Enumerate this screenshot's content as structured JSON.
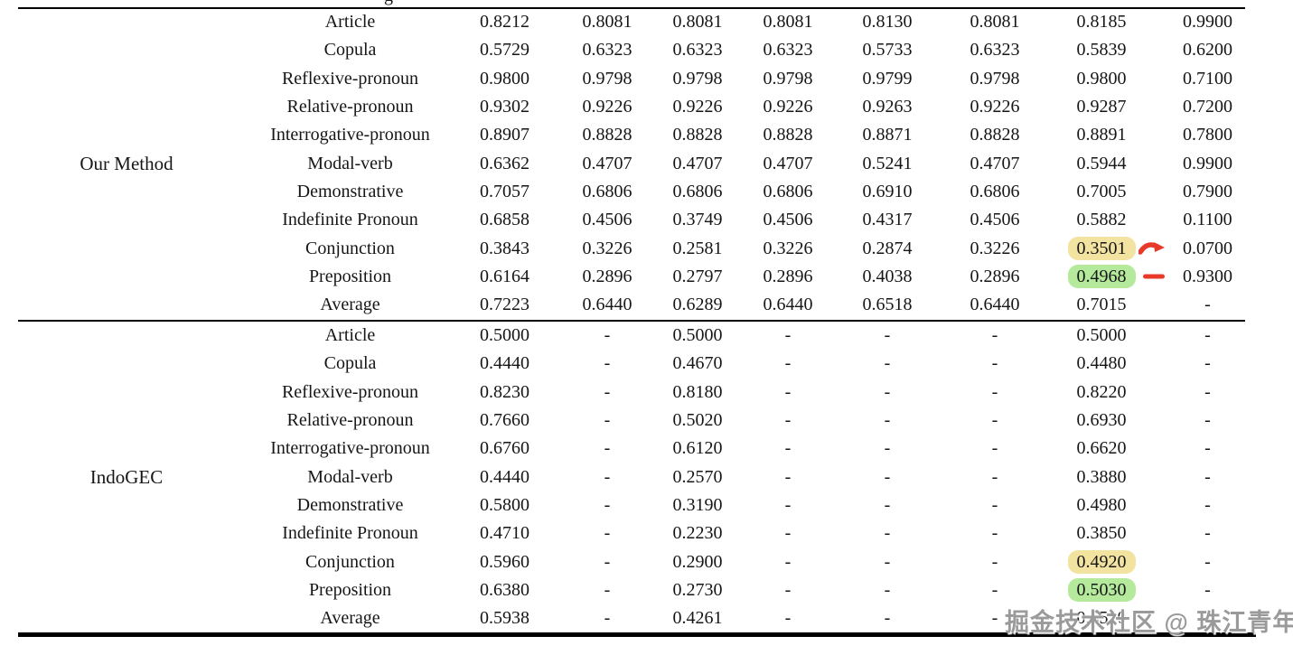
{
  "page": {
    "watermark": "掘金技术社区 @ 珠江青年",
    "cropped_header_remnant": "g"
  },
  "colors": {
    "highlight_yellow": "#f3e3a1",
    "highlight_green": "#b5ea9c",
    "annotation_red": "#e8392b",
    "text": "#161616",
    "watermark_gray": "#9a9a9a"
  },
  "table": {
    "sections": [
      {
        "group": "Our Method",
        "rows": [
          {
            "category": "Article",
            "values": [
              "0.8212",
              "0.8081",
              "0.8081",
              "0.8081",
              "0.8130",
              "0.8081",
              "0.8185",
              "0.9900"
            ]
          },
          {
            "category": "Copula",
            "values": [
              "0.5729",
              "0.6323",
              "0.6323",
              "0.6323",
              "0.5733",
              "0.6323",
              "0.5839",
              "0.6200"
            ]
          },
          {
            "category": "Reflexive-pronoun",
            "values": [
              "0.9800",
              "0.9798",
              "0.9798",
              "0.9798",
              "0.9799",
              "0.9798",
              "0.9800",
              "0.7100"
            ]
          },
          {
            "category": "Relative-pronoun",
            "values": [
              "0.9302",
              "0.9226",
              "0.9226",
              "0.9226",
              "0.9263",
              "0.9226",
              "0.9287",
              "0.7200"
            ]
          },
          {
            "category": "Interrogative-pronoun",
            "values": [
              "0.8907",
              "0.8828",
              "0.8828",
              "0.8828",
              "0.8871",
              "0.8828",
              "0.8891",
              "0.7800"
            ]
          },
          {
            "category": "Modal-verb",
            "values": [
              "0.6362",
              "0.4707",
              "0.4707",
              "0.4707",
              "0.5241",
              "0.4707",
              "0.5944",
              "0.9900"
            ]
          },
          {
            "category": "Demonstrative",
            "values": [
              "0.7057",
              "0.6806",
              "0.6806",
              "0.6806",
              "0.6910",
              "0.6806",
              "0.7005",
              "0.7900"
            ]
          },
          {
            "category": "Indefinite Pronoun",
            "values": [
              "0.6858",
              "0.4506",
              "0.3749",
              "0.4506",
              "0.4317",
              "0.4506",
              "0.5882",
              "0.1100"
            ]
          },
          {
            "category": "Conjunction",
            "values": [
              "0.3843",
              "0.3226",
              "0.2581",
              "0.3226",
              "0.2874",
              "0.3226",
              "0.3501",
              "0.0700"
            ],
            "highlight": {
              "col": 6,
              "color": "yellow"
            },
            "mark": "curve-arrow"
          },
          {
            "category": "Preposition",
            "values": [
              "0.6164",
              "0.2896",
              "0.2797",
              "0.2896",
              "0.4038",
              "0.2896",
              "0.4968",
              "0.9300"
            ],
            "highlight": {
              "col": 6,
              "color": "green"
            },
            "mark": "dash"
          },
          {
            "category": "Average",
            "values": [
              "0.7223",
              "0.6440",
              "0.6289",
              "0.6440",
              "0.6518",
              "0.6440",
              "0.7015",
              "-"
            ]
          }
        ]
      },
      {
        "group": "IndoGEC",
        "rows": [
          {
            "category": "Article",
            "values": [
              "0.5000",
              "-",
              "0.5000",
              "-",
              "-",
              "-",
              "0.5000",
              "-"
            ]
          },
          {
            "category": "Copula",
            "values": [
              "0.4440",
              "-",
              "0.4670",
              "-",
              "-",
              "-",
              "0.4480",
              "-"
            ]
          },
          {
            "category": "Reflexive-pronoun",
            "values": [
              "0.8230",
              "-",
              "0.8180",
              "-",
              "-",
              "-",
              "0.8220",
              "-"
            ]
          },
          {
            "category": "Relative-pronoun",
            "values": [
              "0.7660",
              "-",
              "0.5020",
              "-",
              "-",
              "-",
              "0.6930",
              "-"
            ]
          },
          {
            "category": "Interrogative-pronoun",
            "values": [
              "0.6760",
              "-",
              "0.6120",
              "-",
              "-",
              "-",
              "0.6620",
              "-"
            ]
          },
          {
            "category": "Modal-verb",
            "values": [
              "0.4440",
              "-",
              "0.2570",
              "-",
              "-",
              "-",
              "0.3880",
              "-"
            ]
          },
          {
            "category": "Demonstrative",
            "values": [
              "0.5800",
              "-",
              "0.3190",
              "-",
              "-",
              "-",
              "0.4980",
              "-"
            ]
          },
          {
            "category": "Indefinite Pronoun",
            "values": [
              "0.4710",
              "-",
              "0.2230",
              "-",
              "-",
              "-",
              "0.3850",
              "-"
            ]
          },
          {
            "category": "Conjunction",
            "values": [
              "0.5960",
              "-",
              "0.2900",
              "-",
              "-",
              "-",
              "0.4920",
              "-"
            ],
            "highlight": {
              "col": 6,
              "color": "yellow"
            }
          },
          {
            "category": "Preposition",
            "values": [
              "0.6380",
              "-",
              "0.2730",
              "-",
              "-",
              "-",
              "0.5030",
              "-"
            ],
            "highlight": {
              "col": 6,
              "color": "green"
            }
          },
          {
            "category": "Average",
            "values": [
              "0.5938",
              "-",
              "0.4261",
              "-",
              "-",
              "-",
              "0.5510",
              "-"
            ]
          }
        ]
      }
    ]
  }
}
